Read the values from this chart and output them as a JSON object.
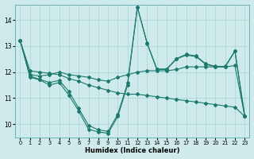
{
  "xlabel": "Humidex (Indice chaleur)",
  "bg_color": "#ceeaea",
  "grid_color": "#a8d4d4",
  "line_color": "#1a7a6e",
  "xlim": [
    -0.5,
    23.5
  ],
  "ylim": [
    9.5,
    14.6
  ],
  "yticks": [
    10,
    11,
    12,
    13,
    14
  ],
  "xticks": [
    0,
    1,
    2,
    3,
    4,
    5,
    6,
    7,
    8,
    9,
    10,
    11,
    12,
    13,
    14,
    15,
    16,
    17,
    18,
    19,
    20,
    21,
    22,
    23
  ],
  "series0": [
    13.2,
    11.8,
    11.7,
    11.5,
    11.6,
    11.1,
    10.5,
    9.8,
    9.7,
    9.65,
    10.3,
    11.5,
    14.5,
    13.1,
    12.1,
    12.1,
    12.5,
    12.65,
    12.6,
    12.3,
    12.2,
    12.2,
    12.8,
    10.3
  ],
  "series1": [
    13.2,
    11.85,
    11.72,
    11.6,
    11.68,
    11.25,
    10.6,
    9.95,
    9.78,
    9.72,
    10.38,
    11.58,
    14.5,
    13.12,
    12.12,
    12.12,
    12.52,
    12.68,
    12.62,
    12.32,
    12.22,
    12.22,
    12.82,
    10.32
  ],
  "series2": [
    13.2,
    11.9,
    11.85,
    11.9,
    12.0,
    11.9,
    11.85,
    11.8,
    11.7,
    11.65,
    11.8,
    11.9,
    12.0,
    12.05,
    12.05,
    12.05,
    12.1,
    12.2,
    12.2,
    12.2,
    12.2,
    12.2,
    12.25,
    10.3
  ],
  "series3": [
    13.2,
    12.05,
    12.0,
    11.95,
    11.9,
    11.75,
    11.65,
    11.5,
    11.4,
    11.3,
    11.2,
    11.15,
    11.15,
    11.1,
    11.05,
    11.0,
    10.95,
    10.9,
    10.85,
    10.8,
    10.75,
    10.7,
    10.65,
    10.3
  ]
}
